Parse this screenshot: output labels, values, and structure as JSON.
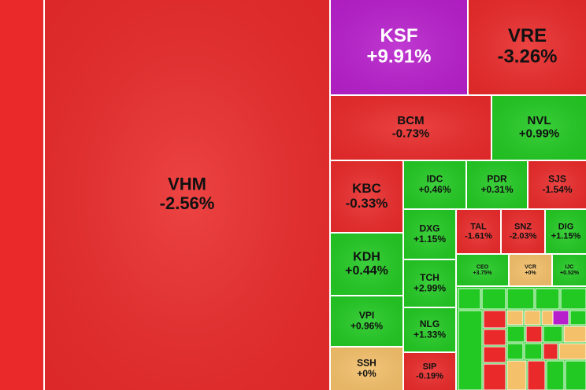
{
  "chart_data": {
    "type": "treemap",
    "categories": [
      "VHM",
      "KSF",
      "VRE",
      "BCM",
      "NVL",
      "KBC",
      "IDC",
      "PDR",
      "SJS",
      "DXG",
      "TAL",
      "SNZ",
      "DIG",
      "KDH",
      "TCH",
      "CEO",
      "VCR",
      "IJC",
      "VPI",
      "NLG",
      "SIP",
      "SSH"
    ],
    "values": [
      -2.56,
      9.91,
      -3.26,
      -0.73,
      0.99,
      -0.33,
      0.46,
      0.31,
      -1.54,
      1.15,
      -1.61,
      -2.03,
      1.15,
      0.44,
      2.99,
      3.75,
      0,
      0.52,
      0.96,
      1.33,
      -0.19,
      0
    ],
    "value_labels": [
      "-2.56%",
      "+9.91%",
      "-3.26%",
      "-0.73%",
      "+0.99%",
      "-0.33%",
      "+0.46%",
      "+0.31%",
      "-1.54%",
      "+1.15%",
      "-1.61%",
      "-2.03%",
      "+1.15%",
      "+0.44%",
      "+2.99%",
      "+3.75%",
      "+0%",
      "+0.52%",
      "+0.96%",
      "+1.33%",
      "-0.19%",
      "+0%"
    ],
    "colors": [
      "#ea2a2a",
      "#b81fcc",
      "#ea2a2a",
      "#ea2a2a",
      "#22c922",
      "#ea2a2a",
      "#22c922",
      "#22c922",
      "#ea2a2a",
      "#22c922",
      "#ea2a2a",
      "#ea2a2a",
      "#22c922",
      "#22c922",
      "#22c922",
      "#22c922",
      "#f4c06a",
      "#22c922",
      "#22c922",
      "#22c922",
      "#ea2a2a",
      "#f4c06a"
    ]
  }
}
